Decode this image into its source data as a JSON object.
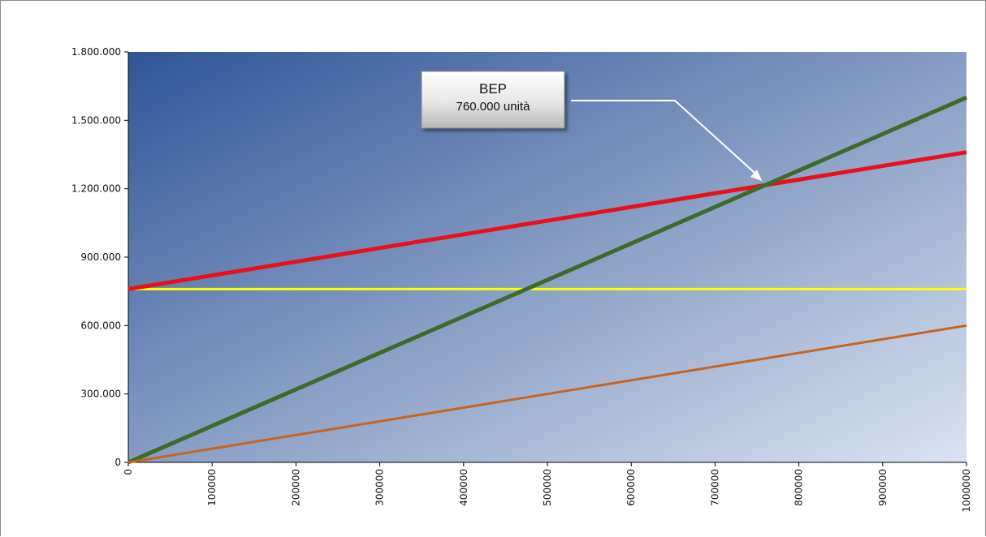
{
  "chart_data": {
    "type": "line",
    "title": "",
    "xlabel": "",
    "ylabel": "",
    "xlim": [
      0,
      1000000
    ],
    "ylim": [
      0,
      1800000
    ],
    "x_ticks": [
      0,
      100000,
      200000,
      300000,
      400000,
      500000,
      600000,
      700000,
      800000,
      900000,
      1000000
    ],
    "x_tick_labels": [
      "0",
      "100000",
      "200000",
      "300000",
      "400000",
      "500000",
      "600000",
      "700000",
      "800000",
      "900000",
      "1000000"
    ],
    "y_ticks": [
      0,
      300000,
      600000,
      900000,
      1200000,
      1500000,
      1800000
    ],
    "y_tick_labels": [
      "0",
      "300.000",
      "600.000",
      "900.000",
      "1.200.000",
      "1.500.000",
      "1.800.000"
    ],
    "grid": false,
    "legend": "none",
    "background_gradient": [
      "#2f5597",
      "#dbe3f1"
    ],
    "series": [
      {
        "color": "#ffff00",
        "width": 3,
        "x": [
          0,
          1000000
        ],
        "y": [
          760000,
          760000
        ]
      },
      {
        "color": "#e8111a",
        "width": 5,
        "x": [
          0,
          1000000
        ],
        "y": [
          760000,
          1360000
        ]
      },
      {
        "color": "#3d6b28",
        "width": 5,
        "x": [
          0,
          1000000
        ],
        "y": [
          0,
          1600000
        ]
      },
      {
        "color": "#c8641e",
        "width": 3,
        "x": [
          0,
          1000000
        ],
        "y": [
          0,
          600000
        ]
      }
    ],
    "annotation": {
      "lines": [
        "BEP",
        "760.000 unità"
      ],
      "target": {
        "x": 760000,
        "y": 1216000
      }
    }
  }
}
